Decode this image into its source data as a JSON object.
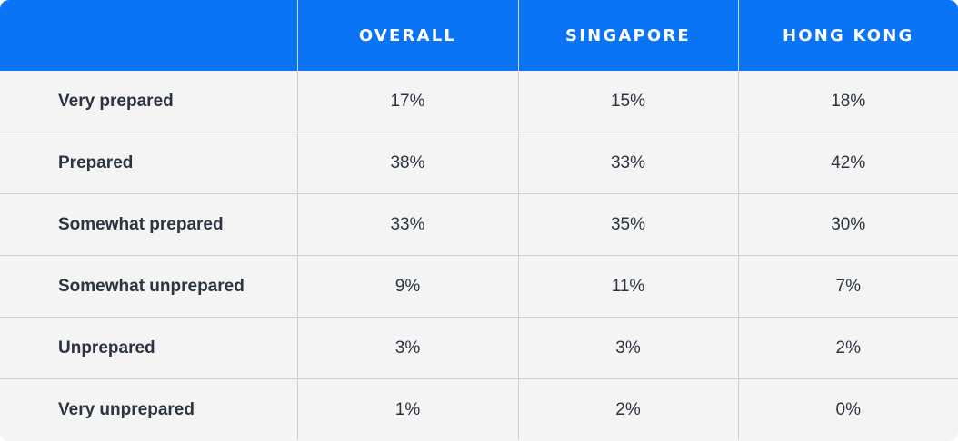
{
  "chart_data": {
    "type": "table",
    "columns": [
      "",
      "OVERALL",
      "SINGAPORE",
      "HONG KONG"
    ],
    "rows": [
      {
        "label": "Very prepared",
        "values": [
          "17%",
          "15%",
          "18%"
        ]
      },
      {
        "label": "Prepared",
        "values": [
          "38%",
          "33%",
          "42%"
        ]
      },
      {
        "label": "Somewhat prepared",
        "values": [
          "33%",
          "35%",
          "30%"
        ]
      },
      {
        "label": "Somewhat unprepared",
        "values": [
          "9%",
          "11%",
          "7%"
        ]
      },
      {
        "label": "Unprepared",
        "values": [
          "3%",
          "3%",
          "2%"
        ]
      },
      {
        "label": "Very unprepared",
        "values": [
          "1%",
          "2%",
          "0%"
        ]
      }
    ],
    "header_color": "#0a74f5",
    "body_color": "#f4f4f4"
  }
}
